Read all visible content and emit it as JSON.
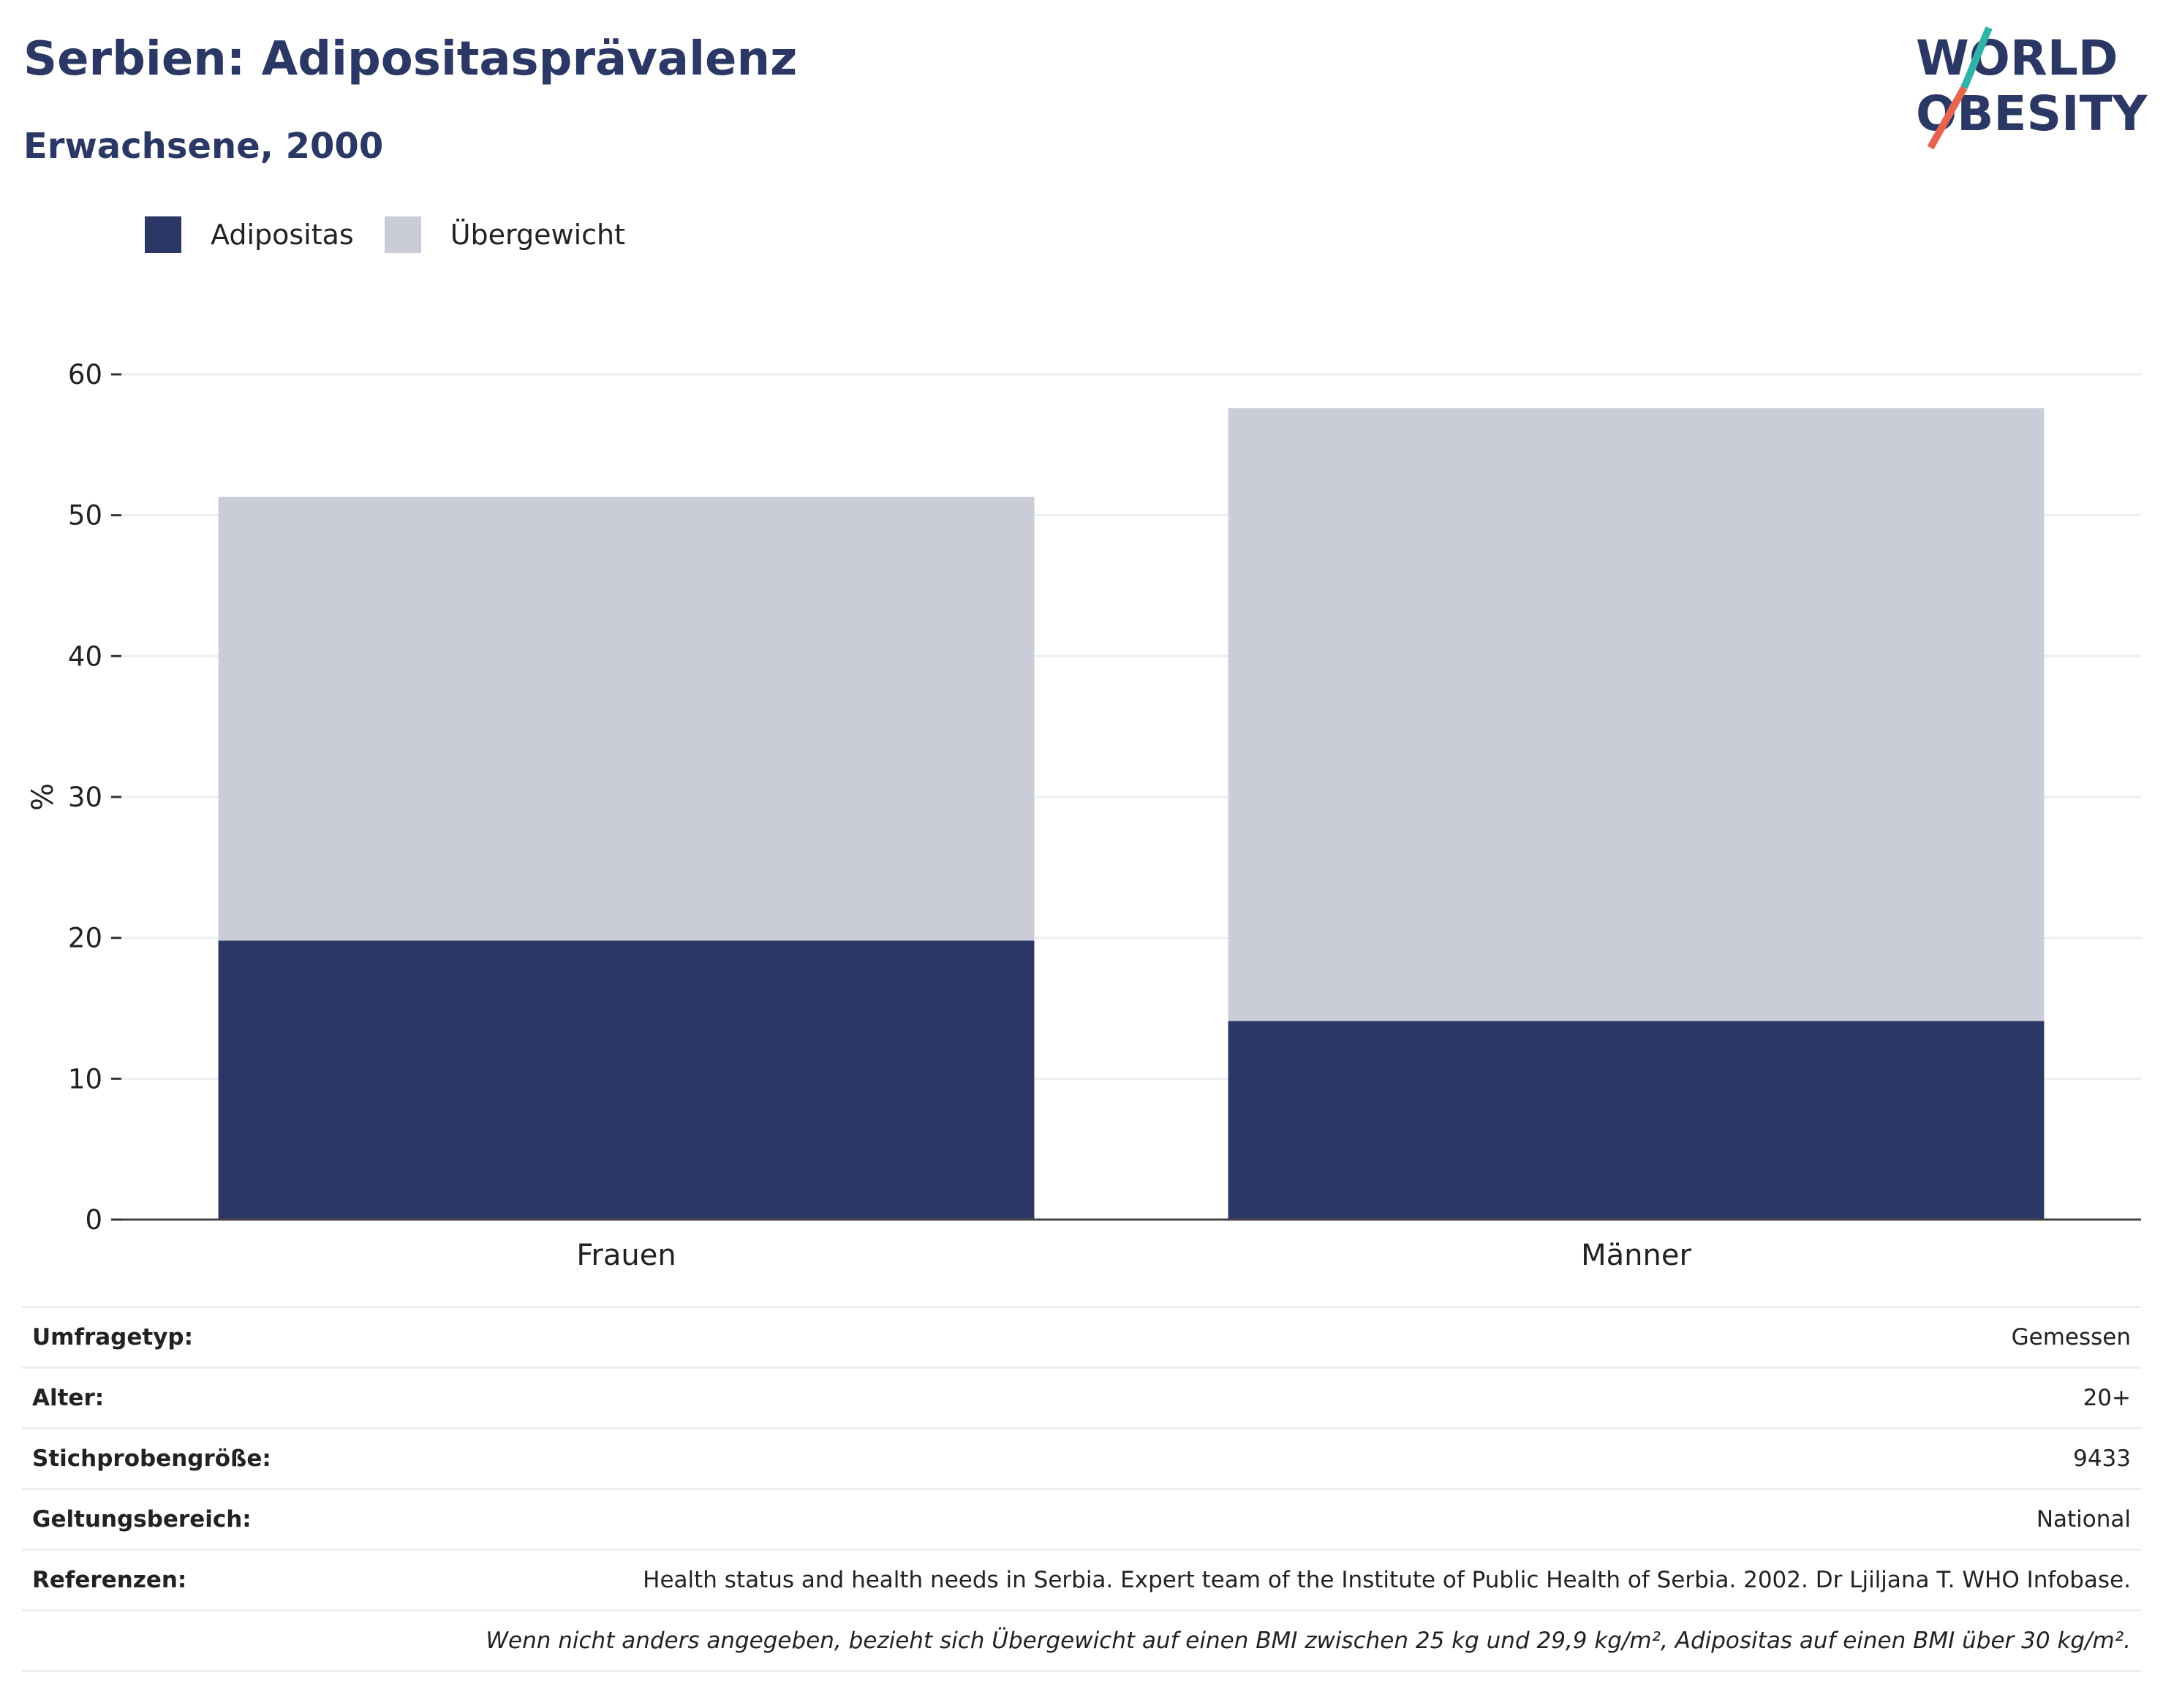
{
  "header": {
    "title": "Serbien: Adipositasprävalenz",
    "subtitle": "Erwachsene, 2000"
  },
  "logo": {
    "line1": "WORLD",
    "line2": "OBESITY"
  },
  "colors": {
    "obesity": "#2b3765",
    "overweight": "#cacdd8",
    "title": "#2b3866",
    "grid": "#eceef3"
  },
  "legend": [
    {
      "label": "Adipositas",
      "color": "#2b3765"
    },
    {
      "label": "Übergewicht",
      "color": "#cacdd8"
    }
  ],
  "chart_data": {
    "type": "bar",
    "stacked": true,
    "categories": [
      "Frauen",
      "Männer"
    ],
    "series": [
      {
        "name": "Adipositas",
        "values": [
          19.8,
          14.1
        ]
      },
      {
        "name": "Übergewicht",
        "values": [
          31.5,
          43.5
        ]
      }
    ],
    "ylabel": "%",
    "ylim": [
      0,
      60
    ],
    "yticks": [
      0,
      10,
      20,
      30,
      40,
      50,
      60
    ],
    "grid": true,
    "legend_position": "top-left"
  },
  "info": {
    "rows": [
      {
        "label": "Umfragetyp:",
        "value": "Gemessen"
      },
      {
        "label": "Alter:",
        "value": "20+"
      },
      {
        "label": "Stichprobengröße:",
        "value": "9433"
      },
      {
        "label": "Geltungsbereich:",
        "value": "National"
      },
      {
        "label": "Referenzen:",
        "value": "Health status and health needs in Serbia. Expert team of the Institute of Public Health of Serbia. 2002. Dr Ljiljana T. WHO Infobase."
      }
    ],
    "note": "Wenn nicht anders angegeben, bezieht sich Übergewicht auf einen BMI zwischen 25 kg und 29,9 kg/m², Adipositas auf einen BMI über 30 kg/m²."
  }
}
